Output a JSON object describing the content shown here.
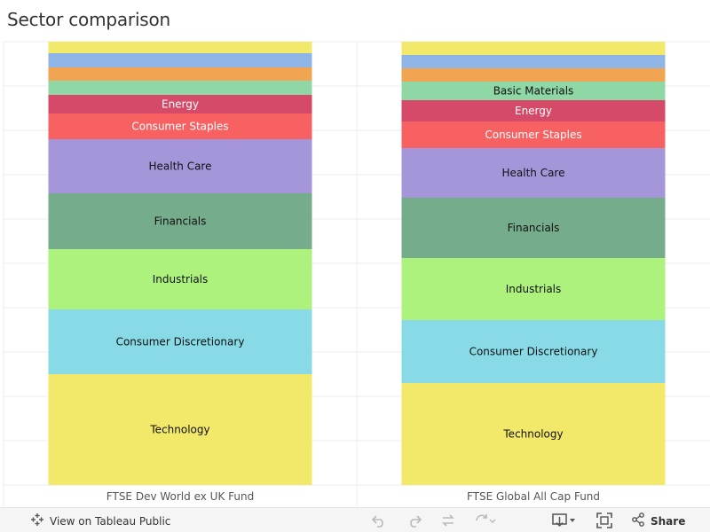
{
  "title": "Sector comparison",
  "toolbar": {
    "view_label": "View on Tableau Public",
    "share_label": "Share",
    "icons": [
      "tableau-icon",
      "undo-icon",
      "redo-icon",
      "revert-icon",
      "refresh-icon",
      "download-icon",
      "fullscreen-icon",
      "share-icon"
    ]
  },
  "chart_data": {
    "type": "bar",
    "stacked": true,
    "categories": [
      "FTSE Dev World ex UK Fund",
      "FTSE Global All Cap Fund"
    ],
    "ylim": [
      0,
      100
    ],
    "grid": true,
    "series": [
      {
        "name": "Technology",
        "color": "#f2e86a",
        "values": [
          25.0,
          23.0
        ]
      },
      {
        "name": "Consumer Discretionary",
        "color": "#88dbe6",
        "values": [
          14.6,
          14.2
        ]
      },
      {
        "name": "Industrials",
        "color": "#adf27d",
        "values": [
          13.6,
          14.0
        ]
      },
      {
        "name": "Financials",
        "color": "#75ad8c",
        "values": [
          12.6,
          13.6
        ]
      },
      {
        "name": "Health Care",
        "color": "#a596da",
        "values": [
          12.2,
          11.2
        ]
      },
      {
        "name": "Consumer Staples",
        "color": "#f86161",
        "values": [
          5.8,
          6.0
        ]
      },
      {
        "name": "Energy",
        "color": "#d54a68",
        "values": [
          4.2,
          4.8
        ]
      },
      {
        "name": "Basic Materials",
        "color": "#8fd8a6",
        "values": [
          3.2,
          4.2
        ]
      },
      {
        "name": "",
        "color": "#f1a452",
        "values": [
          3.0,
          3.0
        ]
      },
      {
        "name": "",
        "color": "#8fb4e6",
        "values": [
          3.2,
          3.0
        ]
      },
      {
        "name": "",
        "color": "#f2e86a",
        "values": [
          2.6,
          3.0
        ]
      }
    ],
    "segment_labels": [
      [
        "Technology",
        "Consumer Discretionary",
        "Industrials",
        "Financials",
        "Health Care",
        "Consumer Staples",
        "Energy",
        "",
        "",
        "",
        ""
      ],
      [
        "Technology",
        "Consumer Discretionary",
        "Industrials",
        "Financials",
        "Health Care",
        "Consumer Staples",
        "Energy",
        "Basic Materials",
        "",
        "",
        ""
      ]
    ]
  }
}
